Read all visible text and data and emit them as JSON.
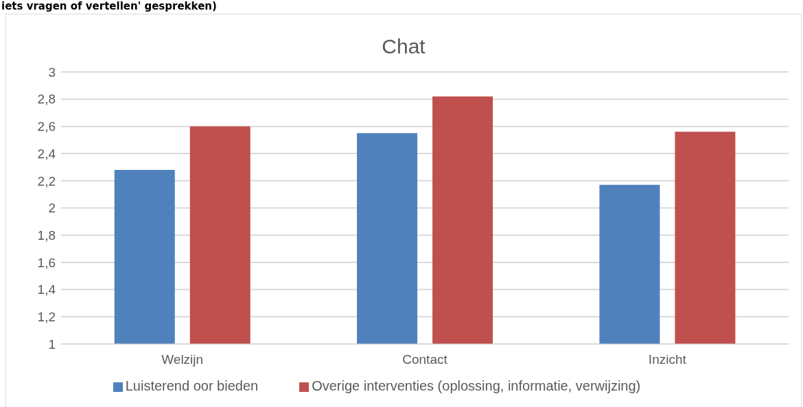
{
  "chart_data": {
    "type": "bar",
    "title": "Chat",
    "annotations": [
      "iets vragen of vertellen' gesprekken)"
    ],
    "categories": [
      "Welzijn",
      "Contact",
      "Inzicht"
    ],
    "series": [
      {
        "name": "Luisterend oor bieden",
        "color": "#4f81bd",
        "values": [
          2.28,
          2.55,
          2.17
        ]
      },
      {
        "name": "Overige interventies (oplossing, informatie, verwijzing)",
        "color": "#c0504d",
        "values": [
          2.6,
          2.82,
          2.56
        ]
      }
    ],
    "ylim": [
      1,
      3
    ],
    "yticks": [
      1,
      {
        "value": 1.2,
        "label": "1,2"
      },
      {
        "value": 1.4,
        "label": "1,4"
      },
      {
        "value": 1.6,
        "label": "1,6"
      },
      {
        "value": 1.8,
        "label": "1,8"
      },
      2,
      {
        "value": 2.2,
        "label": "2,2"
      },
      {
        "value": 2.4,
        "label": "2,4"
      },
      {
        "value": 2.6,
        "label": "2,6"
      },
      {
        "value": 2.8,
        "label": "2,8"
      },
      3
    ],
    "grid": "y",
    "legend": "bottom"
  }
}
